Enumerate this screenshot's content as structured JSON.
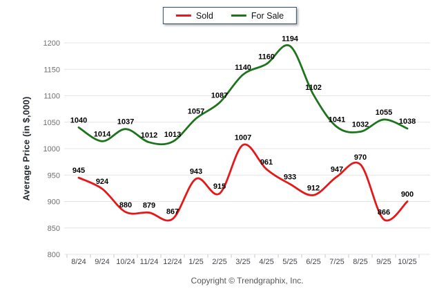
{
  "legend": {
    "items": [
      {
        "label": "Sold",
        "color": "#e81717"
      },
      {
        "label": "For Sale",
        "color": "#1d741d"
      }
    ]
  },
  "chart_data": {
    "type": "line",
    "title": "",
    "xlabel": "",
    "ylabel": "Average Price (in $,000)",
    "categories": [
      "8/24",
      "9/24",
      "10/24",
      "11/24",
      "12/24",
      "1/25",
      "2/25",
      "3/25",
      "4/25",
      "5/25",
      "6/25",
      "7/25",
      "8/25",
      "9/25",
      "10/25"
    ],
    "series": [
      {
        "name": "Sold",
        "color": "#e81717",
        "values": [
          945,
          924,
          880,
          879,
          867,
          943,
          915,
          1007,
          961,
          933,
          912,
          947,
          970,
          866,
          900
        ]
      },
      {
        "name": "For Sale",
        "color": "#1d741d",
        "values": [
          1040,
          1014,
          1037,
          1012,
          1013,
          1057,
          1087,
          1140,
          1160,
          1194,
          1102,
          1041,
          1032,
          1055,
          1038
        ]
      }
    ],
    "ylim": [
      800,
      1200
    ],
    "y_ticks": [
      800,
      850,
      900,
      950,
      1000,
      1050,
      1100,
      1150,
      1200
    ],
    "grid": "horizontal",
    "smooth": true,
    "legend_position": "top-center",
    "data_labels": true
  },
  "colors": {
    "grid": "#e4e4e4",
    "tick": "#c9c9c9",
    "y_tick_text": "#6e6e6e",
    "x_tick_text": "#46464e",
    "data_label_text": "#000000",
    "legend_border": "#2b4a6d",
    "footer_text": "#57575a"
  },
  "footer": {
    "copyright": "Copyright © Trendgraphix, Inc."
  }
}
